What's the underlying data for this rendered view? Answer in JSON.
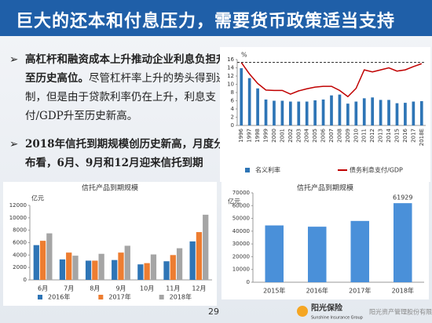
{
  "header": {
    "title": "巨大的还本和付息压力，需要货币政策适当支持"
  },
  "bullets": [
    {
      "bold": "高杠杆和融资成本上升推动企业利息负担升至历史高位。",
      "text": "尽管杠杆率上升的势头得到遏制，但是由于贷款利率仍在上升，利息支付/GDP升至历史新高。"
    },
    {
      "bold": "2018年信托到期规模创历史新高，月度分布看，6月、9月和12月迎来信托到期"
    }
  ],
  "page_number": "29",
  "footer": {
    "logo": "阳光保险",
    "logo_en": "Sunshine Insurance Group",
    "company": "阳光资产管理股份有限公司"
  },
  "chart_data": [
    {
      "type": "bar",
      "unit_label": "%",
      "categories": [
        "1996",
        "1997",
        "1998",
        "1999",
        "2000",
        "2001",
        "2002",
        "2003",
        "2004",
        "2005",
        "2006",
        "2007",
        "2008",
        "2009",
        "2010",
        "2011",
        "2012",
        "2013",
        "2014",
        "2015",
        "2016",
        "2017",
        "2018E"
      ],
      "series": [
        {
          "name": "名义利率",
          "type": "bar",
          "color": "#2e75b6",
          "values": [
            13.9,
            11.5,
            9.0,
            6.3,
            6.0,
            6.0,
            5.8,
            5.8,
            5.8,
            6.1,
            6.3,
            7.3,
            7.5,
            5.3,
            5.8,
            6.6,
            6.8,
            6.2,
            6.2,
            5.4,
            5.5,
            5.8,
            5.9
          ]
        },
        {
          "name": "债务利息支付/GDP",
          "type": "line",
          "color": "#c00000",
          "values": [
            15.3,
            12.5,
            10.2,
            8.6,
            8.5,
            8.5,
            7.6,
            8.4,
            8.9,
            9.3,
            9.5,
            9.5,
            8.5,
            7.0,
            9.0,
            13.5,
            13.0,
            13.5,
            14.0,
            13.2,
            13.5,
            14.3,
            15.0
          ]
        }
      ],
      "hline": 15.3,
      "ylim": [
        0,
        16
      ],
      "yticks": [
        0,
        2,
        4,
        6,
        8,
        10,
        12,
        14,
        16
      ],
      "legend": "bottom"
    },
    {
      "type": "bar",
      "title": "信托产品到期规模",
      "unit_label": "亿元",
      "categories": [
        "6月",
        "7月",
        "8月",
        "9月",
        "10月",
        "11月",
        "12月"
      ],
      "series": [
        {
          "name": "2016年",
          "type": "bar",
          "color": "#2e75b6",
          "values": [
            5600,
            3300,
            3100,
            3200,
            2500,
            3000,
            6200
          ]
        },
        {
          "name": "2017年",
          "type": "bar",
          "color": "#ed7d31",
          "values": [
            6300,
            4400,
            3100,
            4400,
            2700,
            4000,
            7700
          ]
        },
        {
          "name": "2018年",
          "type": "bar",
          "color": "#a5a5a5",
          "values": [
            7500,
            3900,
            4200,
            5500,
            4100,
            5100,
            10500
          ]
        }
      ],
      "ylim": [
        0,
        12000
      ],
      "yticks": [
        0,
        2000,
        4000,
        6000,
        8000,
        10000,
        12000
      ],
      "legend": "bottom"
    },
    {
      "type": "bar",
      "title": "信托产品到期规模",
      "unit_label": "亿元",
      "categories": [
        "2015年",
        "2016年",
        "2017年",
        "2018年"
      ],
      "values": [
        44500,
        43500,
        48000,
        61929
      ],
      "value_labels": [
        null,
        null,
        null,
        "61929"
      ],
      "color": "#4a90d9",
      "ylim": [
        0,
        70000
      ],
      "yticks": [
        0,
        10000,
        20000,
        30000,
        40000,
        50000,
        60000,
        70000
      ]
    }
  ]
}
